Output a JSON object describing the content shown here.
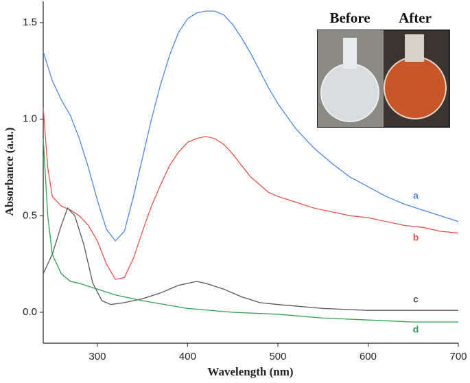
{
  "chart_data": {
    "type": "line",
    "xlabel": "Wavelength (nm)",
    "ylabel": "Absorbance (a.u.)",
    "xlim": [
      240,
      700
    ],
    "ylim": [
      -0.16,
      1.61
    ],
    "xticks": [
      300,
      400,
      500,
      600,
      700
    ],
    "yticks": [
      {
        "value": 0,
        "label": "0.0"
      },
      0.5,
      {
        "value": 1,
        "label": "1.0"
      },
      1.5
    ],
    "inset_labels": [
      "Before",
      "After"
    ],
    "series": [
      {
        "name": "a",
        "color": "#4a86e8",
        "x": [
          240,
          250,
          260,
          270,
          280,
          290,
          300,
          310,
          320,
          330,
          340,
          350,
          360,
          370,
          380,
          390,
          400,
          410,
          420,
          430,
          440,
          450,
          460,
          470,
          480,
          490,
          500,
          520,
          540,
          560,
          580,
          600,
          620,
          640,
          660,
          680,
          700
        ],
        "values": [
          1.35,
          1.2,
          1.1,
          1.02,
          0.9,
          0.75,
          0.58,
          0.43,
          0.37,
          0.42,
          0.6,
          0.8,
          1.0,
          1.18,
          1.33,
          1.45,
          1.52,
          1.55,
          1.56,
          1.56,
          1.54,
          1.49,
          1.42,
          1.34,
          1.25,
          1.16,
          1.08,
          0.95,
          0.85,
          0.77,
          0.7,
          0.65,
          0.6,
          0.56,
          0.53,
          0.5,
          0.47
        ]
      },
      {
        "name": "b",
        "color": "#e8534a",
        "x": [
          240,
          245,
          250,
          260,
          270,
          280,
          290,
          300,
          310,
          320,
          330,
          340,
          350,
          360,
          370,
          380,
          390,
          400,
          410,
          420,
          430,
          440,
          450,
          460,
          470,
          480,
          490,
          500,
          520,
          540,
          560,
          580,
          600,
          620,
          640,
          660,
          680,
          700
        ],
        "values": [
          1.06,
          0.75,
          0.6,
          0.55,
          0.53,
          0.5,
          0.45,
          0.37,
          0.25,
          0.17,
          0.18,
          0.28,
          0.42,
          0.55,
          0.66,
          0.76,
          0.83,
          0.88,
          0.9,
          0.91,
          0.9,
          0.87,
          0.82,
          0.76,
          0.7,
          0.66,
          0.62,
          0.6,
          0.57,
          0.54,
          0.52,
          0.5,
          0.49,
          0.47,
          0.45,
          0.44,
          0.42,
          0.41
        ]
      },
      {
        "name": "c",
        "color": "#555555",
        "x": [
          240,
          250,
          260,
          267,
          275,
          285,
          295,
          305,
          315,
          330,
          350,
          370,
          390,
          410,
          420,
          440,
          460,
          480,
          500,
          550,
          600,
          650,
          700
        ],
        "values": [
          0.2,
          0.3,
          0.45,
          0.54,
          0.5,
          0.35,
          0.15,
          0.06,
          0.04,
          0.05,
          0.07,
          0.1,
          0.14,
          0.16,
          0.15,
          0.12,
          0.08,
          0.05,
          0.04,
          0.02,
          0.01,
          0.01,
          0.01
        ]
      },
      {
        "name": "d",
        "color": "#2e9e4f",
        "x": [
          240,
          245,
          250,
          260,
          270,
          280,
          300,
          320,
          350,
          400,
          450,
          500,
          550,
          600,
          650,
          700
        ],
        "values": [
          0.9,
          0.5,
          0.3,
          0.2,
          0.16,
          0.15,
          0.12,
          0.09,
          0.06,
          0.02,
          0.0,
          -0.01,
          -0.03,
          -0.04,
          -0.05,
          -0.05
        ]
      }
    ]
  }
}
